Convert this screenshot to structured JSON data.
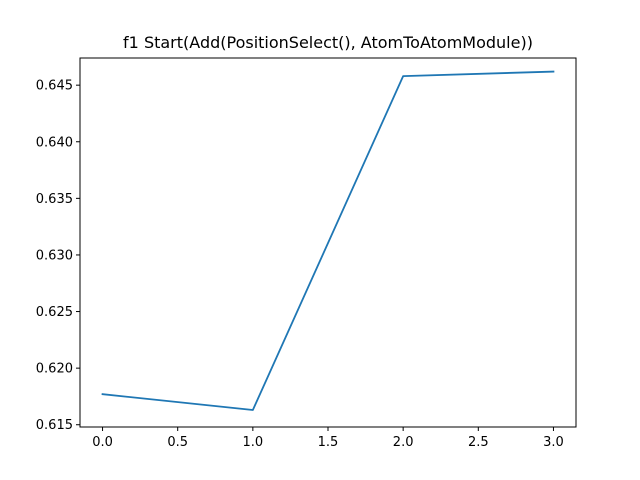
{
  "chart_data": {
    "type": "line",
    "title": "f1 Start(Add(PositionSelect(), AtomToAtomModule))",
    "xlabel": "",
    "ylabel": "",
    "x": [
      0,
      1,
      2,
      3
    ],
    "series": [
      {
        "values": [
          0.6177,
          0.6163,
          0.6458,
          0.6462
        ],
        "color": "#1f77b4"
      }
    ],
    "xlim": [
      -0.15,
      3.15
    ],
    "ylim": [
      0.6148,
      0.6474
    ],
    "xticks": [
      0,
      0.5,
      1,
      1.5,
      2,
      2.5,
      3
    ],
    "xtick_labels": [
      "0.0",
      "0.5",
      "1.0",
      "1.5",
      "2.0",
      "2.5",
      "3.0"
    ],
    "yticks": [
      0.615,
      0.62,
      0.625,
      0.63,
      0.635,
      0.64,
      0.645
    ],
    "ytick_labels": [
      "0.615",
      "0.620",
      "0.625",
      "0.630",
      "0.635",
      "0.640",
      "0.645"
    ],
    "grid": false,
    "legend": "none"
  }
}
